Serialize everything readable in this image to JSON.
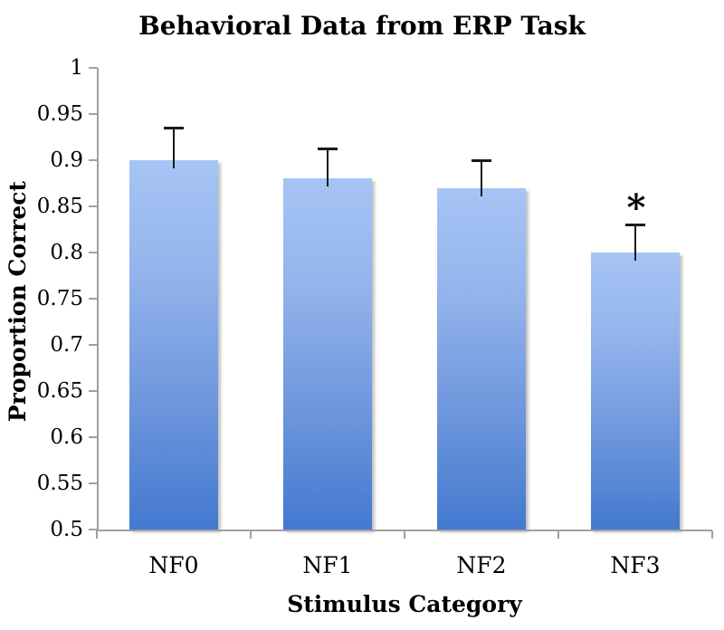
{
  "chart_data": {
    "type": "bar",
    "title": "Behavioral Data from ERP Task",
    "xlabel": "Stimulus Category",
    "ylabel": "Proportion Correct",
    "categories": [
      "NF0",
      "NF1",
      "NF2",
      "NF3"
    ],
    "values": [
      0.9,
      0.88,
      0.87,
      0.8
    ],
    "error_up": [
      0.035,
      0.033,
      0.03,
      0.03
    ],
    "annotations": [
      {
        "category_index": 3,
        "symbol": "*",
        "meaning": "significance-marker"
      }
    ],
    "ylim": [
      0.5,
      1.0
    ],
    "ytick_labels": [
      "1",
      "0.95",
      "0.9",
      "0.85",
      "0.8",
      "0.75",
      "0.7",
      "0.65",
      "0.6",
      "0.55",
      "0.5"
    ],
    "ytick_values": [
      1.0,
      0.95,
      0.9,
      0.85,
      0.8,
      0.75,
      0.7,
      0.65,
      0.6,
      0.55,
      0.5
    ],
    "grid": false,
    "legend": null,
    "colors": {
      "bar_gradient_top": "#a6c4f4",
      "bar_gradient_bottom": "#4379cf",
      "axis": "#a0a0a0",
      "error_bar": "#1a1a1a",
      "text": "#000000",
      "background": "#ffffff"
    }
  }
}
